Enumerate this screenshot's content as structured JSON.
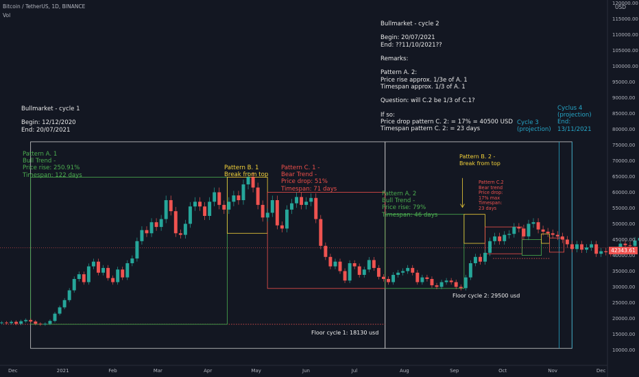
{
  "header": {
    "symbol": "Bitcoin / TetherUS, 1D, BINANCE",
    "indicator": "Vol"
  },
  "price_axis": {
    "currency": "USD",
    "ticks": [
      "120000.00",
      "115000.00",
      "110000.00",
      "105000.00",
      "100000.00",
      "95000.00",
      "90000.00",
      "85000.00",
      "80000.00",
      "75000.00",
      "70000.00",
      "65000.00",
      "60000.00",
      "55000.00",
      "50000.00",
      "45000.00",
      "40000.00",
      "35000.00",
      "30000.00",
      "25000.00",
      "20000.00",
      "15000.00",
      "10000.00"
    ],
    "last_price": "42343.61"
  },
  "time_axis": {
    "ticks": [
      "Dec",
      "2021",
      "Feb",
      "Mar",
      "Apr",
      "May",
      "Jun",
      "Jul",
      "Aug",
      "Sep",
      "Oct",
      "Nov",
      "Dec"
    ]
  },
  "notes": {
    "cycle1": [
      "Bullmarket - cycle 1",
      "",
      "Begin: 12/12/2020",
      "End: 20/07/2021"
    ],
    "cycle2": [
      "Bullmarket - cycle 2",
      "",
      "Begin: 20/07/2021",
      "End: ??11/10/2021??",
      "",
      "Remarks:",
      "",
      "Pattern A. 2:",
      "Price rise approx. 1/3e of A. 1",
      "Timespan approx. 1/3 of A. 1",
      "",
      "Question: will C.2 be 1/3 of C.1?",
      "",
      "If so:",
      "Price drop pattern C. 2: = 17% = 40500 USD",
      "Timespan pattern C. 2: = 23 days"
    ],
    "pattern_a1": [
      "Pattern A. 1",
      "Bull Trend -",
      "Price rise: 250.91%",
      "Timespan: 122 days"
    ],
    "pattern_b1": [
      "Pattern B. 1",
      "Break from top"
    ],
    "pattern_c1": [
      "Pattern C. 1 -",
      "Bear Trend -",
      "Price drop: 51%",
      "Timespan: 71 days"
    ],
    "pattern_a2": [
      "Pattern A. 2",
      "Bull Trend -",
      "Price rise: 79%",
      "Timespan: 46 days"
    ],
    "pattern_b2": [
      "Pattern B. 2 -",
      "Break from top"
    ],
    "pattern_c2": [
      "Pattern C.2",
      "Bear trend",
      "Price drop:",
      "17% max",
      "Timespan:",
      "23 days"
    ],
    "cycle3": [
      "Cycle 3",
      "(projection)"
    ],
    "cycle4": [
      "Cyclus 4",
      "(projection)",
      "End:",
      "13/11/2021"
    ],
    "floor1": "Floor cycle 1: 18130 usd",
    "floor2": "Floor cycle 2: 29500 usd"
  },
  "colors": {
    "background": "#131722",
    "up": "#26a69a",
    "down": "#ef5350",
    "pattern_a": "#4caf50",
    "pattern_b": "#f5d33a",
    "pattern_c": "#f0504b",
    "cycle_box": "#d0d0d0",
    "cycle_projection": "#26a7c8"
  },
  "chart_data": {
    "type": "candlestick",
    "title": "Bitcoin / TetherUS, 1D, BINANCE",
    "y_unit": "USD",
    "ylim": [
      10000,
      120000
    ],
    "x_range": [
      "2020-11-23",
      "2021-12-05"
    ],
    "grid": false,
    "series": [
      {
        "name": "",
        "date_start": "2020-11-23",
        "close_every_3_days": [
          18700,
          18500,
          18900,
          18300,
          19100,
          19500,
          19000,
          18300,
          18100,
          18300,
          19200,
          21500,
          23500,
          25800,
          28900,
          32500,
          34000,
          31500,
          36500,
          38000,
          34500,
          36000,
          32800,
          31500,
          35500,
          33000,
          37500,
          39000,
          44500,
          48000,
          47000,
          50500,
          49000,
          51500,
          57500,
          54000,
          47000,
          46500,
          50000,
          55500,
          57000,
          55500,
          52500,
          57000,
          60000,
          56000,
          54500,
          57000,
          59000,
          57500,
          62500,
          64800,
          61500,
          56000,
          52000,
          53500,
          57500,
          49500,
          48500,
          54500,
          56500,
          58500,
          56000,
          57000,
          58200,
          51500,
          43000,
          39500,
          36500,
          38000,
          35000,
          32000,
          37500,
          36500,
          33800,
          35500,
          38500,
          36000,
          33200,
          32500,
          31500,
          33800,
          34500,
          35000,
          36000,
          34500,
          31500,
          33000,
          32500,
          30500,
          30000,
          31500,
          32000,
          31500,
          30000,
          29600,
          33000,
          37500,
          39500,
          38000,
          40800,
          44500,
          46000,
          44500,
          46500,
          46800,
          49000,
          48500,
          46000,
          50000,
          50500,
          48200,
          47500,
          47000,
          46500,
          46000,
          45000,
          43500,
          42000,
          43500,
          41800,
          42500,
          43500,
          40500,
          41300,
          41000,
          40600,
          41500,
          43700,
          43200,
          43000,
          44700,
          45500,
          46000,
          42500,
          43300,
          43800,
          44200,
          42343
        ]
      }
    ],
    "annotations": [
      {
        "label": "Pattern A. 1",
        "type": "box",
        "start": "2020-12-12",
        "end": "2021-04-13",
        "low": 18130,
        "high": 64800
      },
      {
        "label": "Pattern B. 1",
        "type": "box",
        "start": "2021-04-13",
        "end": "2021-05-08",
        "low": 47000,
        "high": 64800
      },
      {
        "label": "Pattern C. 1",
        "type": "box",
        "start": "2021-05-08",
        "end": "2021-07-20",
        "low": 29500,
        "high": 60000
      },
      {
        "label": "Pattern A. 2",
        "type": "box",
        "start": "2021-07-20",
        "end": "2021-09-07",
        "low": 29500,
        "high": 53000
      },
      {
        "label": "Pattern B. 2",
        "type": "box",
        "start": "2021-09-07",
        "end": "2021-09-20",
        "low": 43800,
        "high": 53000
      },
      {
        "label": "Pattern C.2",
        "type": "box",
        "start": "2021-09-20",
        "end": "2021-10-13",
        "low": 40500,
        "high": 49000
      },
      {
        "label": "Cycle 3",
        "type": "projection",
        "start": "2021-09-20",
        "end": "2021-11-13",
        "low": 40500,
        "high": 47000
      },
      {
        "label": "Floor cycle 1: 18130 usd",
        "type": "hline",
        "value": 18130
      },
      {
        "label": "Floor cycle 2: 29500 usd",
        "type": "hline",
        "value": 29500
      }
    ]
  }
}
